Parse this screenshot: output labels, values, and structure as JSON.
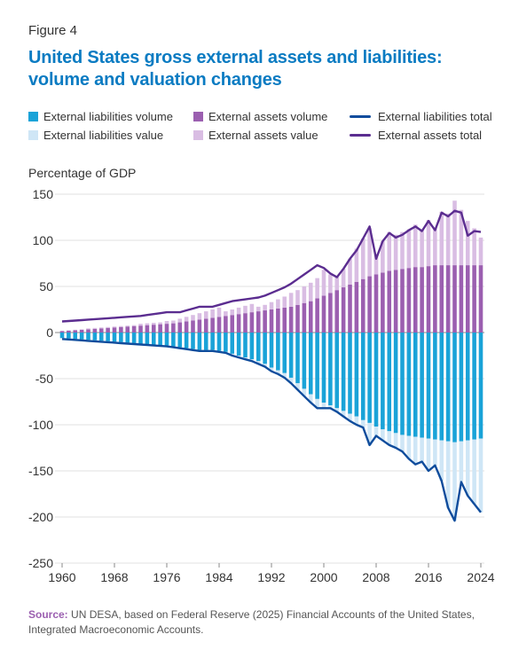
{
  "figure_label": "Figure 4",
  "title": "United States gross external assets and liabilities: volume and valuation changes",
  "source": {
    "label": "Source:",
    "text": "UN DESA, based on Federal Reserve (2025) Financial Accounts of the United States, Integrated Macroeconomic Accounts."
  },
  "colors": {
    "liab_volume": "#1aa3d8",
    "liab_value": "#cfe6f6",
    "asset_volume": "#9b5fb0",
    "asset_value": "#d9bde3",
    "liab_total": "#0f4c9c",
    "asset_total": "#5b2d90",
    "title": "#0a7bc2"
  },
  "chart_data": {
    "type": "bar",
    "ylabel": "Percentage of GDP",
    "xlabel": "",
    "ylim": [
      -250,
      150
    ],
    "yticks": [
      150,
      100,
      50,
      0,
      -50,
      -100,
      -150,
      -200,
      -250
    ],
    "xticks": [
      1960,
      1968,
      1976,
      1984,
      1992,
      2000,
      2008,
      2016,
      2024
    ],
    "x": [
      1960,
      1961,
      1962,
      1963,
      1964,
      1965,
      1966,
      1967,
      1968,
      1969,
      1970,
      1971,
      1972,
      1973,
      1974,
      1975,
      1976,
      1977,
      1978,
      1979,
      1980,
      1981,
      1982,
      1983,
      1984,
      1985,
      1986,
      1987,
      1988,
      1989,
      1990,
      1991,
      1992,
      1993,
      1994,
      1995,
      1996,
      1997,
      1998,
      1999,
      2000,
      2001,
      2002,
      2003,
      2004,
      2005,
      2006,
      2007,
      2008,
      2009,
      2010,
      2011,
      2012,
      2013,
      2014,
      2015,
      2016,
      2017,
      2018,
      2019,
      2020,
      2021,
      2022,
      2023,
      2024
    ],
    "legend": [
      {
        "key": "liab_volume",
        "label": "External liabilities volume",
        "kind": "bar"
      },
      {
        "key": "asset_volume",
        "label": "External assets volume",
        "kind": "bar"
      },
      {
        "key": "liab_total",
        "label": "External liabilities total",
        "kind": "line"
      },
      {
        "key": "liab_value",
        "label": "External liabilities value",
        "kind": "bar"
      },
      {
        "key": "asset_value",
        "label": "External assets value",
        "kind": "bar"
      },
      {
        "key": "asset_total",
        "label": "External assets total",
        "kind": "line"
      }
    ],
    "series": [
      {
        "name": "External liabilities volume",
        "key": "liab_volume",
        "values": [
          -6,
          -6.5,
          -7,
          -7.5,
          -8,
          -8.5,
          -9,
          -9.5,
          -10,
          -10.5,
          -11,
          -11.5,
          -12,
          -12.5,
          -13,
          -13.5,
          -14,
          -15,
          -16,
          -17,
          -18,
          -19,
          -19,
          -19,
          -20,
          -21,
          -23,
          -25,
          -27,
          -29,
          -31,
          -34,
          -38,
          -41,
          -44,
          -49,
          -55,
          -61,
          -67,
          -72,
          -76,
          -79,
          -82,
          -85,
          -88,
          -91,
          -95,
          -98,
          -102,
          -105,
          -107,
          -109,
          -111,
          -112,
          -113,
          -114,
          -115,
          -116,
          -117,
          -118,
          -119,
          -118,
          -117,
          -116,
          -115
        ]
      },
      {
        "name": "External liabilities value",
        "key": "liab_value",
        "values": [
          -1,
          -1,
          -1,
          -1,
          -1,
          -1,
          -1,
          -1,
          -1,
          -1,
          -1,
          -1,
          -1,
          -1,
          -1,
          -1,
          -1,
          -1,
          -1,
          -1,
          -1,
          -1,
          -1,
          -1,
          -1,
          -1,
          -2,
          -2,
          -2,
          -2,
          -3,
          -3,
          -4,
          -4,
          -5,
          -6,
          -7,
          -8,
          -9,
          -10,
          -6,
          -3,
          -4,
          -6,
          -8,
          -9,
          -8,
          -24,
          -10,
          -12,
          -15,
          -16,
          -18,
          -25,
          -30,
          -26,
          -35,
          -28,
          -44,
          -72,
          -85,
          -44,
          -60,
          -70,
          -80
        ]
      },
      {
        "name": "External assets volume",
        "key": "asset_volume",
        "values": [
          1.5,
          2,
          2.5,
          3,
          3.5,
          4,
          4.5,
          5,
          5.5,
          6,
          6.5,
          7,
          7.5,
          8,
          8.5,
          9,
          9.5,
          10,
          11,
          12,
          13,
          14,
          15,
          16,
          17,
          18,
          19,
          20,
          21,
          22,
          23,
          24,
          25,
          26,
          27,
          28,
          30,
          32,
          34,
          37,
          40,
          43,
          46,
          49,
          52,
          55,
          58,
          61,
          63,
          65,
          67,
          68,
          69,
          70,
          71,
          71,
          72,
          73,
          73,
          73,
          73,
          73,
          73,
          73,
          73
        ]
      },
      {
        "name": "External assets value",
        "key": "asset_value",
        "values": [
          0.5,
          0.5,
          0.5,
          0.5,
          1,
          1,
          1,
          1,
          1,
          1,
          1,
          1,
          2,
          2,
          2,
          2,
          3,
          3,
          4,
          5,
          6,
          7,
          8,
          9,
          10,
          5,
          6,
          7,
          8,
          9,
          5,
          6,
          8,
          10,
          12,
          15,
          16,
          18,
          20,
          22,
          28,
          20,
          14,
          20,
          28,
          36,
          44,
          52,
          22,
          34,
          42,
          38,
          40,
          42,
          46,
          40,
          50,
          40,
          58,
          56,
          70,
          60,
          48,
          40,
          30
        ]
      }
    ],
    "lines": [
      {
        "name": "External liabilities total",
        "key": "liab_total",
        "values": [
          -7,
          -7.5,
          -8,
          -8.5,
          -9,
          -9.5,
          -10,
          -10.5,
          -11,
          -11.5,
          -12,
          -12.5,
          -13,
          -13.5,
          -14,
          -14.5,
          -15,
          -16,
          -17,
          -18,
          -19,
          -20,
          -20,
          -20,
          -21,
          -22,
          -25,
          -27,
          -29,
          -31,
          -34,
          -37,
          -42,
          -45,
          -49,
          -55,
          -62,
          -69,
          -76,
          -82,
          -82,
          -82,
          -86,
          -91,
          -96,
          -100,
          -103,
          -122,
          -112,
          -117,
          -122,
          -125,
          -129,
          -137,
          -143,
          -140,
          -150,
          -144,
          -161,
          -190,
          -204,
          -162,
          -177,
          -186,
          -195
        ]
      },
      {
        "name": "External assets total",
        "key": "asset_total",
        "values": [
          12,
          12.5,
          13,
          13.5,
          14,
          14.5,
          15,
          15.5,
          16,
          16.5,
          17,
          17.5,
          18,
          19,
          20,
          21,
          22,
          22,
          22,
          24,
          26,
          28,
          28,
          28,
          30,
          32,
          34,
          35,
          36,
          37,
          38,
          40,
          43,
          46,
          49,
          53,
          58,
          63,
          68,
          73,
          70,
          64,
          60,
          69,
          80,
          89,
          102,
          115,
          80,
          99,
          108,
          103,
          106,
          111,
          115,
          110,
          121,
          111,
          130,
          126,
          132,
          130,
          105,
          110,
          109
        ]
      }
    ]
  }
}
